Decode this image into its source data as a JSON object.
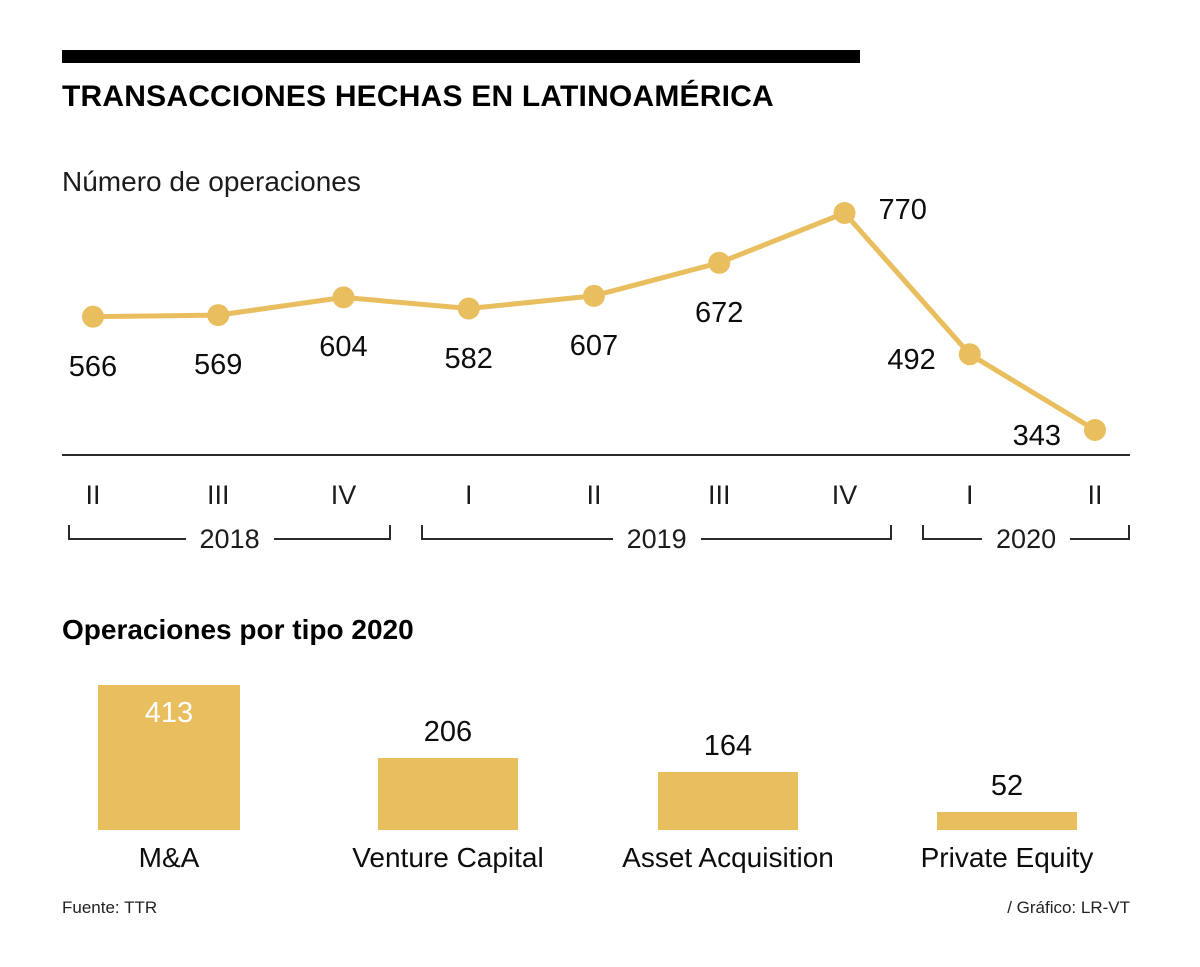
{
  "header": {
    "title": "TRANSACCIONES HECHAS EN LATINOAMÉRICA"
  },
  "chart_data": [
    {
      "type": "line",
      "title": "Número de operaciones",
      "x": [
        "II",
        "III",
        "IV",
        "I",
        "II",
        "III",
        "IV",
        "I",
        "II"
      ],
      "values": [
        566,
        569,
        604,
        582,
        607,
        672,
        770,
        492,
        343
      ],
      "label_positions": [
        "below",
        "below",
        "below",
        "below",
        "below",
        "below",
        "right",
        "left",
        "left"
      ],
      "year_groups": [
        {
          "label": "2018",
          "from": 0,
          "to": 2
        },
        {
          "label": "2019",
          "from": 3,
          "to": 6
        },
        {
          "label": "2020",
          "from": 7,
          "to": 8
        }
      ],
      "line_color": "#E9BE5E",
      "grid": false,
      "legend": "none"
    },
    {
      "type": "bar",
      "title": "Operaciones por tipo 2020",
      "categories": [
        "M&A",
        "Venture Capital",
        "Asset Acquisition",
        "Private Equity"
      ],
      "values": [
        413,
        206,
        164,
        52
      ],
      "bar_color": "#E9BE5E",
      "value_label_inside": [
        true,
        false,
        false,
        false
      ],
      "grid": false,
      "legend": "none"
    }
  ],
  "footer": {
    "source": "Fuente: TTR",
    "credit": "/ Gráfico: LR-VT"
  }
}
